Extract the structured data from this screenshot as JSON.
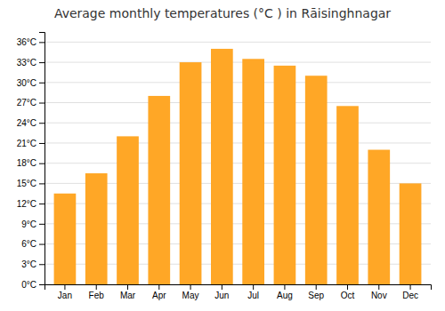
{
  "chart_data": {
    "type": "bar",
    "title": "Average monthly temperatures (°C ) in Rāisinghnagar",
    "categories": [
      "Jan",
      "Feb",
      "Mar",
      "Apr",
      "May",
      "Jun",
      "Jul",
      "Aug",
      "Sep",
      "Oct",
      "Nov",
      "Dec"
    ],
    "values": [
      13.5,
      16.5,
      22.0,
      28.0,
      33.0,
      35.0,
      33.5,
      32.5,
      31.0,
      26.5,
      20.0,
      15.0
    ],
    "color": "#FFA726",
    "ylim": [
      0,
      37.5
    ],
    "yticks": [
      {
        "value": 0,
        "label": "0°C"
      },
      {
        "value": 3,
        "label": "3°C"
      },
      {
        "value": 6,
        "label": "6°C"
      },
      {
        "value": 9,
        "label": "9°C"
      },
      {
        "value": 12,
        "label": "12°C"
      },
      {
        "value": 15,
        "label": "15°C"
      },
      {
        "value": 18,
        "label": "18°C"
      },
      {
        "value": 21,
        "label": "21°C"
      },
      {
        "value": 24,
        "label": "24°C"
      },
      {
        "value": 27,
        "label": "27°C"
      },
      {
        "value": 30,
        "label": "30°C"
      },
      {
        "value": 33,
        "label": "33°C"
      },
      {
        "value": 36,
        "label": "36°C"
      }
    ],
    "grid": true
  }
}
